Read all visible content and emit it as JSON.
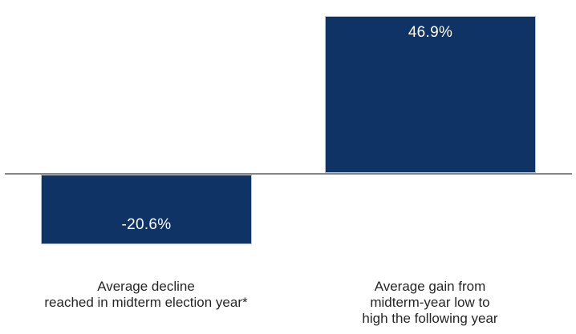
{
  "chart_data": {
    "type": "bar",
    "categories": [
      "Average decline reached in midterm election year*",
      "Average gain from midterm-year low to high the following year"
    ],
    "values": [
      -20.6,
      46.9
    ],
    "data_labels": [
      "-20.6%",
      "46.9%"
    ],
    "title": "",
    "xlabel": "",
    "ylabel": "",
    "ylim": [
      -25,
      50
    ],
    "grid": false,
    "legend": false,
    "bar_color": "#0e3364",
    "bar_border_color": "#b9c5d2",
    "baseline_color": "#858585",
    "value_label_color": "#ffffff",
    "category_label_color": "#262626"
  },
  "bars": [
    {
      "value_label": "-20.6%",
      "category_lines": [
        "Average decline",
        "reached in midterm election year*"
      ]
    },
    {
      "value_label": "46.9%",
      "category_lines": [
        "Average gain from",
        "midterm-year low to",
        "high the following year"
      ]
    }
  ]
}
